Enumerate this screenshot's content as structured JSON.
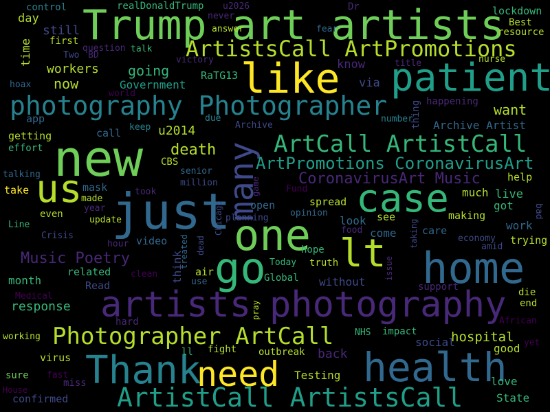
{
  "colors": {
    "background": "#000000",
    "palette": [
      "#fde725",
      "#b5de2b",
      "#6ece58",
      "#35b779",
      "#1f9e89",
      "#26828e",
      "#31688e",
      "#3e4989",
      "#482878",
      "#440154"
    ]
  },
  "words": [
    {
      "text": "Trump art artists",
      "c": "#6ece58"
    },
    {
      "text": "like",
      "c": "#fde725"
    },
    {
      "text": "patient",
      "c": "#1f9e89"
    },
    {
      "text": "ArtistsCall ArtPromotions",
      "c": "#b5de2b"
    },
    {
      "text": "photography Photographer",
      "c": "#26828e"
    },
    {
      "text": "new",
      "c": "#6ece58"
    },
    {
      "text": "us",
      "c": "#b5de2b"
    },
    {
      "text": "just",
      "c": "#31688e"
    },
    {
      "text": "many",
      "c": "#3e4989"
    },
    {
      "text": "case",
      "c": "#35b779"
    },
    {
      "text": "one",
      "c": "#6ece58"
    },
    {
      "text": "lt",
      "c": "#b5de2b"
    },
    {
      "text": "go",
      "c": "#35b779"
    },
    {
      "text": "home",
      "c": "#31688e"
    },
    {
      "text": "ArtCall ArtistCall",
      "c": "#35b779"
    },
    {
      "text": "ArtPromotions CoronavirusArt",
      "c": "#1f9e89"
    },
    {
      "text": "CoronavirusArt Music",
      "c": "#482878"
    },
    {
      "text": "artists",
      "c": "#482878"
    },
    {
      "text": "photography",
      "c": "#482878"
    },
    {
      "text": "Photographer ArtCall",
      "c": "#b5de2b"
    },
    {
      "text": "Thank",
      "c": "#26828e"
    },
    {
      "text": "need",
      "c": "#fde725"
    },
    {
      "text": "health",
      "c": "#31688e"
    },
    {
      "text": "ArtistCall ArtistsCall",
      "c": "#1f9e89"
    },
    {
      "text": "Music Poetry",
      "c": "#482878"
    },
    {
      "text": "death",
      "c": "#b5de2b"
    },
    {
      "text": "u2014",
      "c": "#b5de2b"
    },
    {
      "text": "hospital",
      "c": "#b5de2b"
    },
    {
      "text": "want",
      "c": "#b5de2b"
    },
    {
      "text": "now",
      "c": "#b5de2b"
    },
    {
      "text": "workers",
      "c": "#b5de2b"
    },
    {
      "text": "going",
      "c": "#35b779"
    },
    {
      "text": "Government",
      "c": "#1f9e89"
    },
    {
      "text": "RaTG13",
      "c": "#35b779"
    },
    {
      "text": "still",
      "c": "#3e4989"
    },
    {
      "text": "time",
      "c": "#b5de2b"
    },
    {
      "text": "day",
      "c": "#b5de2b"
    },
    {
      "text": "control",
      "c": "#26828e"
    },
    {
      "text": "realDonaldTrump",
      "c": "#35b779"
    },
    {
      "text": "u2026",
      "c": "#482878"
    },
    {
      "text": "never",
      "c": "#482878"
    },
    {
      "text": "answer",
      "c": "#b5de2b"
    },
    {
      "text": "Dr",
      "c": "#482878"
    },
    {
      "text": "fear",
      "c": "#31688e"
    },
    {
      "text": "lockdown",
      "c": "#35b779"
    },
    {
      "text": "Best",
      "c": "#b5de2b"
    },
    {
      "text": "resource",
      "c": "#b5de2b"
    },
    {
      "text": "first",
      "c": "#b5de2b"
    },
    {
      "text": "question",
      "c": "#482878"
    },
    {
      "text": "talk",
      "c": "#35b779"
    },
    {
      "text": "Two",
      "c": "#3e4989"
    },
    {
      "text": "BD",
      "c": "#482878"
    },
    {
      "text": "victory",
      "c": "#482878"
    },
    {
      "text": "title",
      "c": "#482878"
    },
    {
      "text": "nurse",
      "c": "#b5de2b"
    },
    {
      "text": "know",
      "c": "#482878"
    },
    {
      "text": "via",
      "c": "#3e4989"
    },
    {
      "text": "hoax",
      "c": "#31688e"
    },
    {
      "text": "world",
      "c": "#440154"
    },
    {
      "text": "happening",
      "c": "#482878"
    },
    {
      "text": "thing",
      "c": "#3e4989"
    },
    {
      "text": "app",
      "c": "#31688e"
    },
    {
      "text": "keep",
      "c": "#26828e"
    },
    {
      "text": "due",
      "c": "#26828e"
    },
    {
      "text": "number",
      "c": "#26828e"
    },
    {
      "text": "Archive",
      "c": "#3e4989"
    },
    {
      "text": "Archive Artist",
      "c": "#31688e"
    },
    {
      "text": "call",
      "c": "#31688e"
    },
    {
      "text": "getting",
      "c": "#b5de2b"
    },
    {
      "text": "effort",
      "c": "#35b779"
    },
    {
      "text": "CBS",
      "c": "#b5de2b"
    },
    {
      "text": "senior",
      "c": "#31688e"
    },
    {
      "text": "million",
      "c": "#3e4989"
    },
    {
      "text": "talking",
      "c": "#31688e"
    },
    {
      "text": "mask",
      "c": "#31688e"
    },
    {
      "text": "game",
      "c": "#482878"
    },
    {
      "text": "help",
      "c": "#b5de2b"
    },
    {
      "text": "take",
      "c": "#fde725"
    },
    {
      "text": "took",
      "c": "#482878"
    },
    {
      "text": "made",
      "c": "#b5de2b"
    },
    {
      "text": "Fund",
      "c": "#440154"
    },
    {
      "text": "much",
      "c": "#b5de2b"
    },
    {
      "text": "live",
      "c": "#35b779"
    },
    {
      "text": "got",
      "c": "#35b779"
    },
    {
      "text": "bad",
      "c": "#3e4989"
    },
    {
      "text": "year",
      "c": "#482878"
    },
    {
      "text": "Chicago",
      "c": "#3e4989"
    },
    {
      "text": "open",
      "c": "#31688e"
    },
    {
      "text": "spread",
      "c": "#b5de2b"
    },
    {
      "text": "update",
      "c": "#b5de2b"
    },
    {
      "text": "even",
      "c": "#b5de2b"
    },
    {
      "text": "planning",
      "c": "#3e4989"
    },
    {
      "text": "opinion",
      "c": "#31688e"
    },
    {
      "text": "making",
      "c": "#b5de2b"
    },
    {
      "text": "see",
      "c": "#b5de2b"
    },
    {
      "text": "look",
      "c": "#31688e"
    },
    {
      "text": "work",
      "c": "#31688e"
    },
    {
      "text": "Line",
      "c": "#35b779"
    },
    {
      "text": "Crisis",
      "c": "#3e4989"
    },
    {
      "text": "dead",
      "c": "#3e4989"
    },
    {
      "text": "treated",
      "c": "#31688e"
    },
    {
      "text": "food",
      "c": "#482878"
    },
    {
      "text": "come",
      "c": "#31688e"
    },
    {
      "text": "taking",
      "c": "#3e4989"
    },
    {
      "text": "care",
      "c": "#31688e"
    },
    {
      "text": "economy",
      "c": "#3e4989"
    },
    {
      "text": "trying",
      "c": "#b5de2b"
    },
    {
      "text": "hour",
      "c": "#482878"
    },
    {
      "text": "video",
      "c": "#31688e"
    },
    {
      "text": "amid",
      "c": "#3e4989"
    },
    {
      "text": "think",
      "c": "#3e4989"
    },
    {
      "text": "hope",
      "c": "#35b779"
    },
    {
      "text": "air",
      "c": "#b5de2b"
    },
    {
      "text": "Today",
      "c": "#35b779"
    },
    {
      "text": "truth",
      "c": "#b5de2b"
    },
    {
      "text": "issue",
      "c": "#482878"
    },
    {
      "text": "month",
      "c": "#35b779"
    },
    {
      "text": "related",
      "c": "#35b779"
    },
    {
      "text": "clean",
      "c": "#440154"
    },
    {
      "text": "use",
      "c": "#31688e"
    },
    {
      "text": "Global",
      "c": "#35b779"
    },
    {
      "text": "without",
      "c": "#3e4989"
    },
    {
      "text": "Read",
      "c": "#3e4989"
    },
    {
      "text": "Medical",
      "c": "#440154"
    },
    {
      "text": "pray",
      "c": "#b5de2b"
    },
    {
      "text": "support",
      "c": "#482878"
    },
    {
      "text": "die",
      "c": "#b5de2b"
    },
    {
      "text": "end",
      "c": "#b5de2b"
    },
    {
      "text": "response",
      "c": "#35b779"
    },
    {
      "text": "hard",
      "c": "#482878"
    },
    {
      "text": "African",
      "c": "#440154"
    },
    {
      "text": "working",
      "c": "#b5de2b"
    },
    {
      "text": "NHS",
      "c": "#35b779"
    },
    {
      "text": "impact",
      "c": "#35b779"
    },
    {
      "text": "social",
      "c": "#3e4989"
    },
    {
      "text": "yet",
      "c": "#440154"
    },
    {
      "text": "good",
      "c": "#b5de2b"
    },
    {
      "text": "ll",
      "c": "#35b779"
    },
    {
      "text": "fight",
      "c": "#b5de2b"
    },
    {
      "text": "outbreak",
      "c": "#b5de2b"
    },
    {
      "text": "back",
      "c": "#482878"
    },
    {
      "text": "virus",
      "c": "#b5de2b"
    },
    {
      "text": "sure",
      "c": "#6ece58"
    },
    {
      "text": "fast",
      "c": "#440154"
    },
    {
      "text": "miss",
      "c": "#482878"
    },
    {
      "text": "Testing",
      "c": "#b5de2b"
    },
    {
      "text": "love",
      "c": "#35b779"
    },
    {
      "text": "House",
      "c": "#440154"
    },
    {
      "text": "confirmed",
      "c": "#3e4989"
    },
    {
      "text": "State",
      "c": "#35b779"
    }
  ]
}
